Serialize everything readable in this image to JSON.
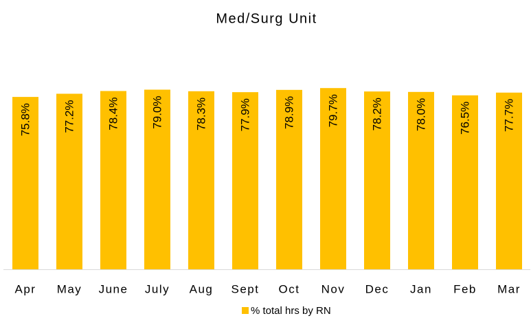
{
  "chart_data": {
    "type": "bar",
    "title": "Med/Surg Unit",
    "categories": [
      "Apr",
      "May",
      "June",
      "July",
      "Aug",
      "Sept",
      "Oct",
      "Nov",
      "Dec",
      "Jan",
      "Feb",
      "Mar"
    ],
    "series": [
      {
        "name": "% total hrs by RN",
        "color": "#ffc000",
        "values": [
          75.8,
          77.2,
          78.4,
          79.0,
          78.3,
          77.9,
          78.9,
          79.7,
          78.2,
          78.0,
          76.5,
          77.7
        ],
        "value_labels": [
          "75.8%",
          "77.2%",
          "78.4%",
          "79.0%",
          "78.3%",
          "77.9%",
          "78.9%",
          "79.7%",
          "78.2%",
          "78.0%",
          "76.5%",
          "77.7%"
        ]
      }
    ]
  }
}
